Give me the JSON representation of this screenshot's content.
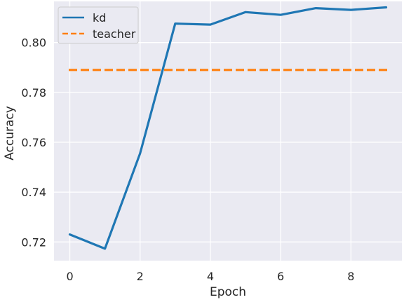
{
  "chart_data": {
    "type": "line",
    "title": "",
    "xlabel": "Epoch",
    "ylabel": "Accuracy",
    "xlim": [
      -0.45,
      9.45
    ],
    "ylim": [
      0.7125,
      0.8165
    ],
    "xticks": [
      0,
      2,
      4,
      6,
      8
    ],
    "xtick_labels": [
      "0",
      "2",
      "4",
      "6",
      "8"
    ],
    "yticks": [
      0.72,
      0.74,
      0.76,
      0.78,
      0.8
    ],
    "ytick_labels": [
      "0.72",
      "0.74",
      "0.76",
      "0.78",
      "0.80"
    ],
    "grid": true,
    "legend_position": "upper-left",
    "background_color": "#eaeaf2",
    "series": [
      {
        "name": "kd",
        "color": "#1f77b4",
        "style": "solid",
        "x": [
          0,
          1,
          2,
          3,
          4,
          5,
          6,
          7,
          8,
          9
        ],
        "values": [
          0.723,
          0.7173,
          0.7555,
          0.8076,
          0.8072,
          0.8122,
          0.8111,
          0.8138,
          0.8131,
          0.8141
        ]
      },
      {
        "name": "teacher",
        "color": "#ff7f0e",
        "style": "dashed",
        "x": [
          -0.03,
          9.03
        ],
        "values": [
          0.789,
          0.789
        ]
      }
    ]
  }
}
